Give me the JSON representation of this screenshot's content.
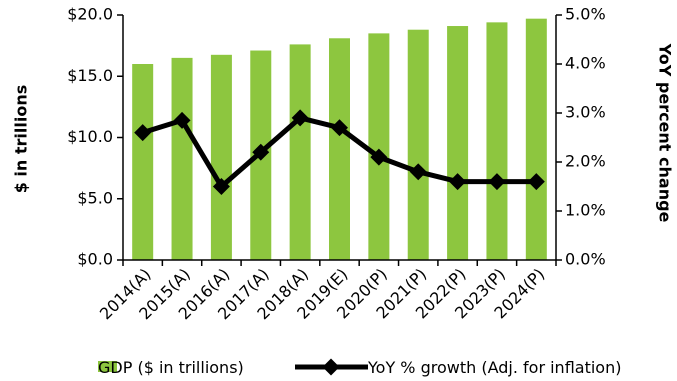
{
  "chart_data": {
    "type": "bar",
    "categories": [
      "2014(A)",
      "2015(A)",
      "2016(A)",
      "2017(A)",
      "2018(A)",
      "2019(E)",
      "2020(P)",
      "2021(P)",
      "2022(P)",
      "2023(P)",
      "2024(P)"
    ],
    "series": [
      {
        "name": "GDP ($ in trillions)",
        "type": "bar",
        "axis": "left",
        "color": "#8dc63f",
        "values": [
          16.0,
          16.5,
          16.75,
          17.1,
          17.6,
          18.1,
          18.5,
          18.8,
          19.1,
          19.4,
          19.7
        ]
      },
      {
        "name": "YoY % growth (Adj. for inflation)",
        "type": "line",
        "axis": "right",
        "color": "#000000",
        "values": [
          2.6,
          2.85,
          1.5,
          2.2,
          2.9,
          2.7,
          2.1,
          1.8,
          1.6,
          1.6,
          1.6
        ]
      }
    ],
    "ylabel": "$ in trillions",
    "y2label": "YoY percent change",
    "ylim": [
      0,
      20
    ],
    "y2lim": [
      0,
      5
    ],
    "yticks": [
      "$0.0",
      "$5.0",
      "$10.0",
      "$15.0",
      "$20.0"
    ],
    "y2ticks": [
      "0.0%",
      "1.0%",
      "2.0%",
      "3.0%",
      "4.0%",
      "5.0%"
    ],
    "grid": false,
    "legend_position": "bottom"
  }
}
